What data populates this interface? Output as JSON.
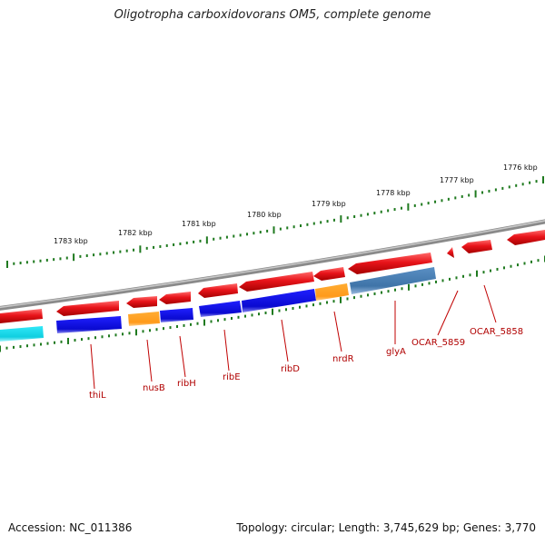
{
  "title": "Oligotropha carboxidovorans OM5, complete genome",
  "footer": {
    "accession": "Accession: NC_011386",
    "summary": "Topology: circular; Length: 3,745,629 bp; Genes: 3,770"
  },
  "kbp_labels": [
    "1783 kbp",
    "1782 kbp",
    "1781 kbp",
    "1780 kbp",
    "1779 kbp",
    "1778 kbp",
    "1777 kbp",
    "1776 kbp"
  ],
  "gene_labels": [
    "thiL",
    "nusB",
    "ribH",
    "ribE",
    "ribD",
    "nrdR",
    "glyA",
    "OCAR_5859",
    "OCAR_5858"
  ],
  "colors": {
    "cds": "#e8141a",
    "backbone": "#8a8a8a",
    "tick": "#1f7a1f",
    "cog_blue": "#1010d8",
    "cog_orange": "#ff9a1a",
    "cog_steel": "#4a7fb0",
    "cog_cyan": "#18d8e8",
    "label": "#b00000"
  }
}
